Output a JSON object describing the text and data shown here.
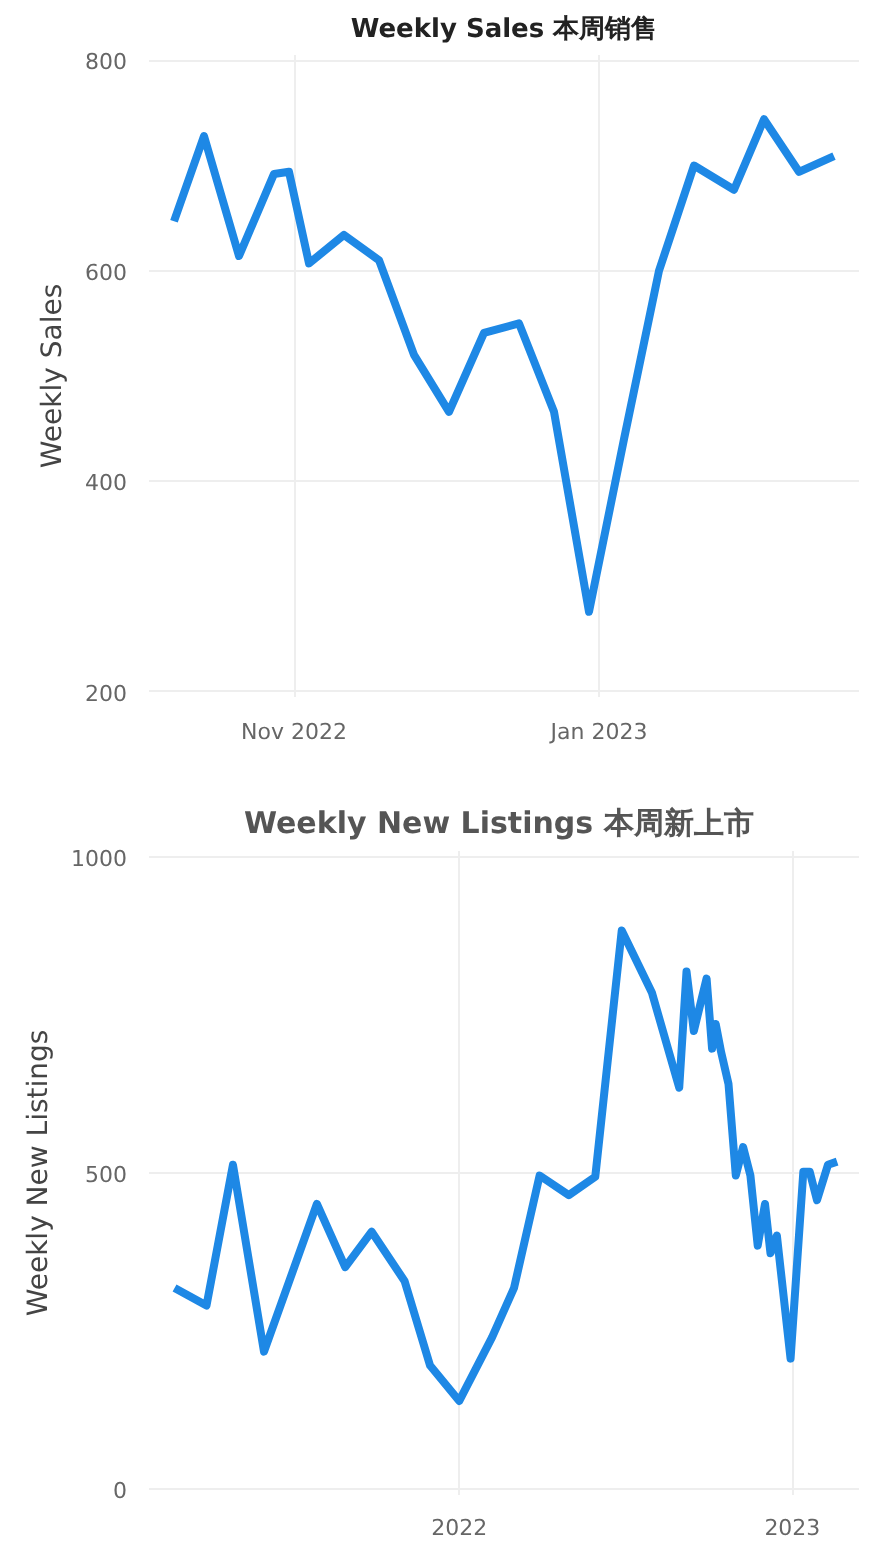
{
  "chart_data": [
    {
      "type": "line",
      "title": "Weekly Sales 本周销售",
      "ylabel": "Weekly Sales",
      "x": [
        "2022-10-08",
        "2022-10-14",
        "2022-10-21",
        "2022-10-28",
        "2022-10-31",
        "2022-11-04",
        "2022-11-11",
        "2022-11-18",
        "2022-11-25",
        "2022-12-02",
        "2022-12-09",
        "2022-12-16",
        "2022-12-23",
        "2022-12-30",
        "2023-01-06",
        "2023-01-13",
        "2023-01-20",
        "2023-01-28",
        "2023-02-03",
        "2023-02-10",
        "2023-02-17"
      ],
      "series": [
        {
          "color": "#1e88e5",
          "values": [
            647,
            728,
            614,
            692,
            694,
            607,
            634,
            610,
            520,
            466,
            541,
            550,
            466,
            276,
            440,
            600,
            700,
            677,
            744,
            694,
            709
          ]
        }
      ],
      "xlim": [
        "2022-10-03",
        "2023-02-22"
      ],
      "xticks": [
        {
          "value": "2022-11-01",
          "label": "Nov 2022"
        },
        {
          "value": "2023-01-01",
          "label": "Jan 2023"
        }
      ],
      "ylim": [
        195,
        805
      ],
      "yticks": [
        200,
        400,
        600,
        800
      ],
      "grid": true,
      "marker": "none",
      "line_style": "solid"
    },
    {
      "type": "line",
      "title": "Weekly New Listings  本周新上市",
      "ylabel": "Weekly New Listings",
      "x": [
        "2021-02-23",
        "2021-03-30",
        "2021-04-28",
        "2021-06-01",
        "2021-07-29",
        "2021-08-29",
        "2021-09-27",
        "2021-11-02",
        "2021-11-30",
        "2022-01-01",
        "2022-02-06",
        "2022-03-02",
        "2022-03-30",
        "2022-05-01",
        "2022-05-30",
        "2022-06-28",
        "2022-07-31",
        "2022-08-30",
        "2022-09-07",
        "2022-09-15",
        "2022-09-29",
        "2022-10-05",
        "2022-10-09",
        "2022-10-15",
        "2022-10-23",
        "2022-10-31",
        "2022-11-08",
        "2022-11-16",
        "2022-11-24",
        "2022-12-02",
        "2022-12-08",
        "2022-12-15",
        "2022-12-30",
        "2023-01-13",
        "2023-01-20",
        "2023-01-28",
        "2023-02-09",
        "2023-02-19"
      ],
      "series": [
        {
          "color": "#1e88e5",
          "values": [
            318,
            290,
            513,
            217,
            451,
            351,
            407,
            329,
            195,
            139,
            240,
            318,
            496,
            465,
            494,
            884,
            786,
            635,
            819,
            725,
            808,
            697,
            736,
            691,
            641,
            496,
            541,
            496,
            385,
            451,
            373,
            401,
            206,
            502,
            502,
            457,
            513,
            518
          ]
        }
      ],
      "xlim": [
        "2021-01-26",
        "2023-03-15"
      ],
      "xticks": [
        {
          "value": "2022-01-01",
          "label": "2022"
        },
        {
          "value": "2023-01-01",
          "label": "2023"
        }
      ],
      "ylim": [
        -10,
        1010
      ],
      "yticks": [
        0,
        500,
        1000
      ],
      "grid": true,
      "marker": "none",
      "line_style": "solid"
    }
  ]
}
